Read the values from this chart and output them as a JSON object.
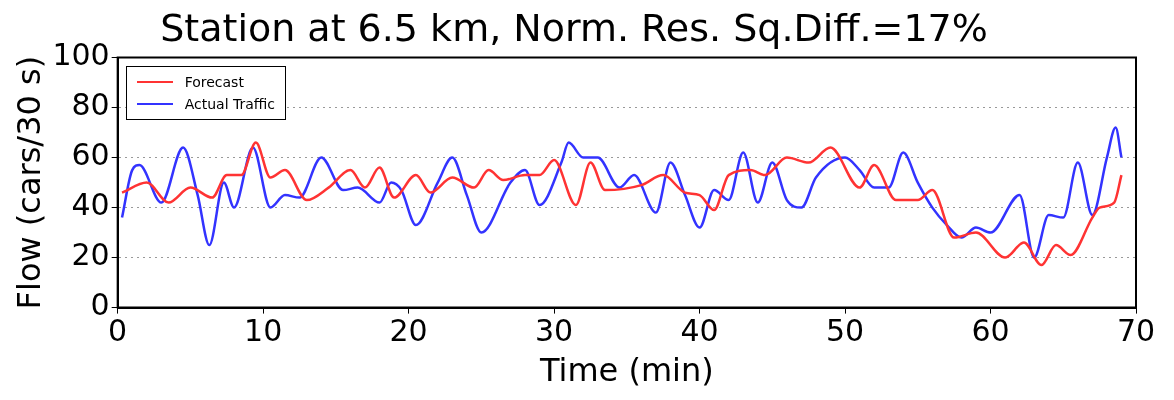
{
  "chart_data": {
    "type": "line",
    "title": "Station at 6.5 km, Norm. Res. Sq.Diff.=17%",
    "xlabel": "Time (min)",
    "ylabel": "Flow (cars/30 s)",
    "xlim": [
      0,
      70
    ],
    "xticks": [
      0,
      10,
      20,
      30,
      40,
      50,
      60,
      70
    ],
    "ylim": [
      0,
      100
    ],
    "yticks": [
      0,
      20,
      40,
      60,
      80,
      100
    ],
    "grid": "y",
    "legend": "top left",
    "line_style": "solid",
    "marker": "none",
    "series": [
      {
        "name": "Forecast",
        "color": "#ff3333",
        "x": [
          0.3,
          2,
          3.5,
          5,
          6.5,
          7.5,
          8.5,
          9.5,
          10.5,
          11.5,
          13,
          14.5,
          16,
          17,
          18,
          19,
          20.5,
          21.5,
          23,
          24.5,
          25.5,
          26.5,
          28,
          29,
          30,
          31.5,
          32.5,
          33.5,
          36,
          37.5,
          39,
          40,
          41,
          42,
          43.5,
          44.5,
          46,
          47.5,
          49,
          51,
          52,
          53.5,
          55,
          56,
          57.5,
          59,
          61,
          62.3,
          63.5,
          64.5,
          65.5,
          67,
          67.5,
          68.5,
          69
        ],
        "values": [
          46,
          50,
          42,
          48,
          44,
          53,
          53,
          66,
          52,
          55,
          43,
          48,
          55,
          48,
          56,
          44,
          53,
          46,
          52,
          48,
          55,
          51,
          53,
          53,
          59,
          41,
          58,
          47,
          49,
          53,
          46,
          45,
          39,
          53,
          55,
          53,
          60,
          58,
          64,
          48,
          57,
          43,
          43,
          47,
          28,
          30,
          20,
          26,
          17,
          25,
          21,
          36,
          40,
          42,
          53
        ]
      },
      {
        "name": "Actual Traffic",
        "color": "#3333ff",
        "x": [
          0.3,
          1,
          1.5,
          3,
          4.5,
          5.5,
          6.3,
          7.3,
          8,
          9.3,
          10.5,
          11.5,
          12.5,
          14,
          15.5,
          16.5,
          18,
          18.8,
          19.5,
          20.5,
          22,
          23,
          24,
          25,
          27,
          28,
          29,
          30.5,
          31,
          32,
          33,
          34.5,
          35.5,
          37,
          38,
          39,
          40,
          41,
          42,
          43,
          44,
          45,
          46,
          47,
          48,
          50,
          51,
          52,
          53,
          54,
          55,
          56,
          57,
          58,
          59,
          60,
          62,
          63,
          64,
          65,
          66,
          67,
          68,
          68.6,
          69
        ],
        "values": [
          36,
          55,
          57,
          42,
          64,
          45,
          25,
          50,
          40,
          64,
          40,
          45,
          44,
          60,
          47,
          48,
          42,
          50,
          47,
          33,
          50,
          60,
          45,
          30,
          50,
          55,
          41,
          58,
          66,
          60,
          60,
          48,
          53,
          38,
          58,
          45,
          32,
          47,
          43,
          62,
          42,
          58,
          43,
          40,
          52,
          60,
          55,
          48,
          48,
          62,
          50,
          40,
          33,
          28,
          32,
          30,
          45,
          20,
          37,
          36,
          58,
          37,
          60,
          72,
          60
        ]
      }
    ]
  }
}
